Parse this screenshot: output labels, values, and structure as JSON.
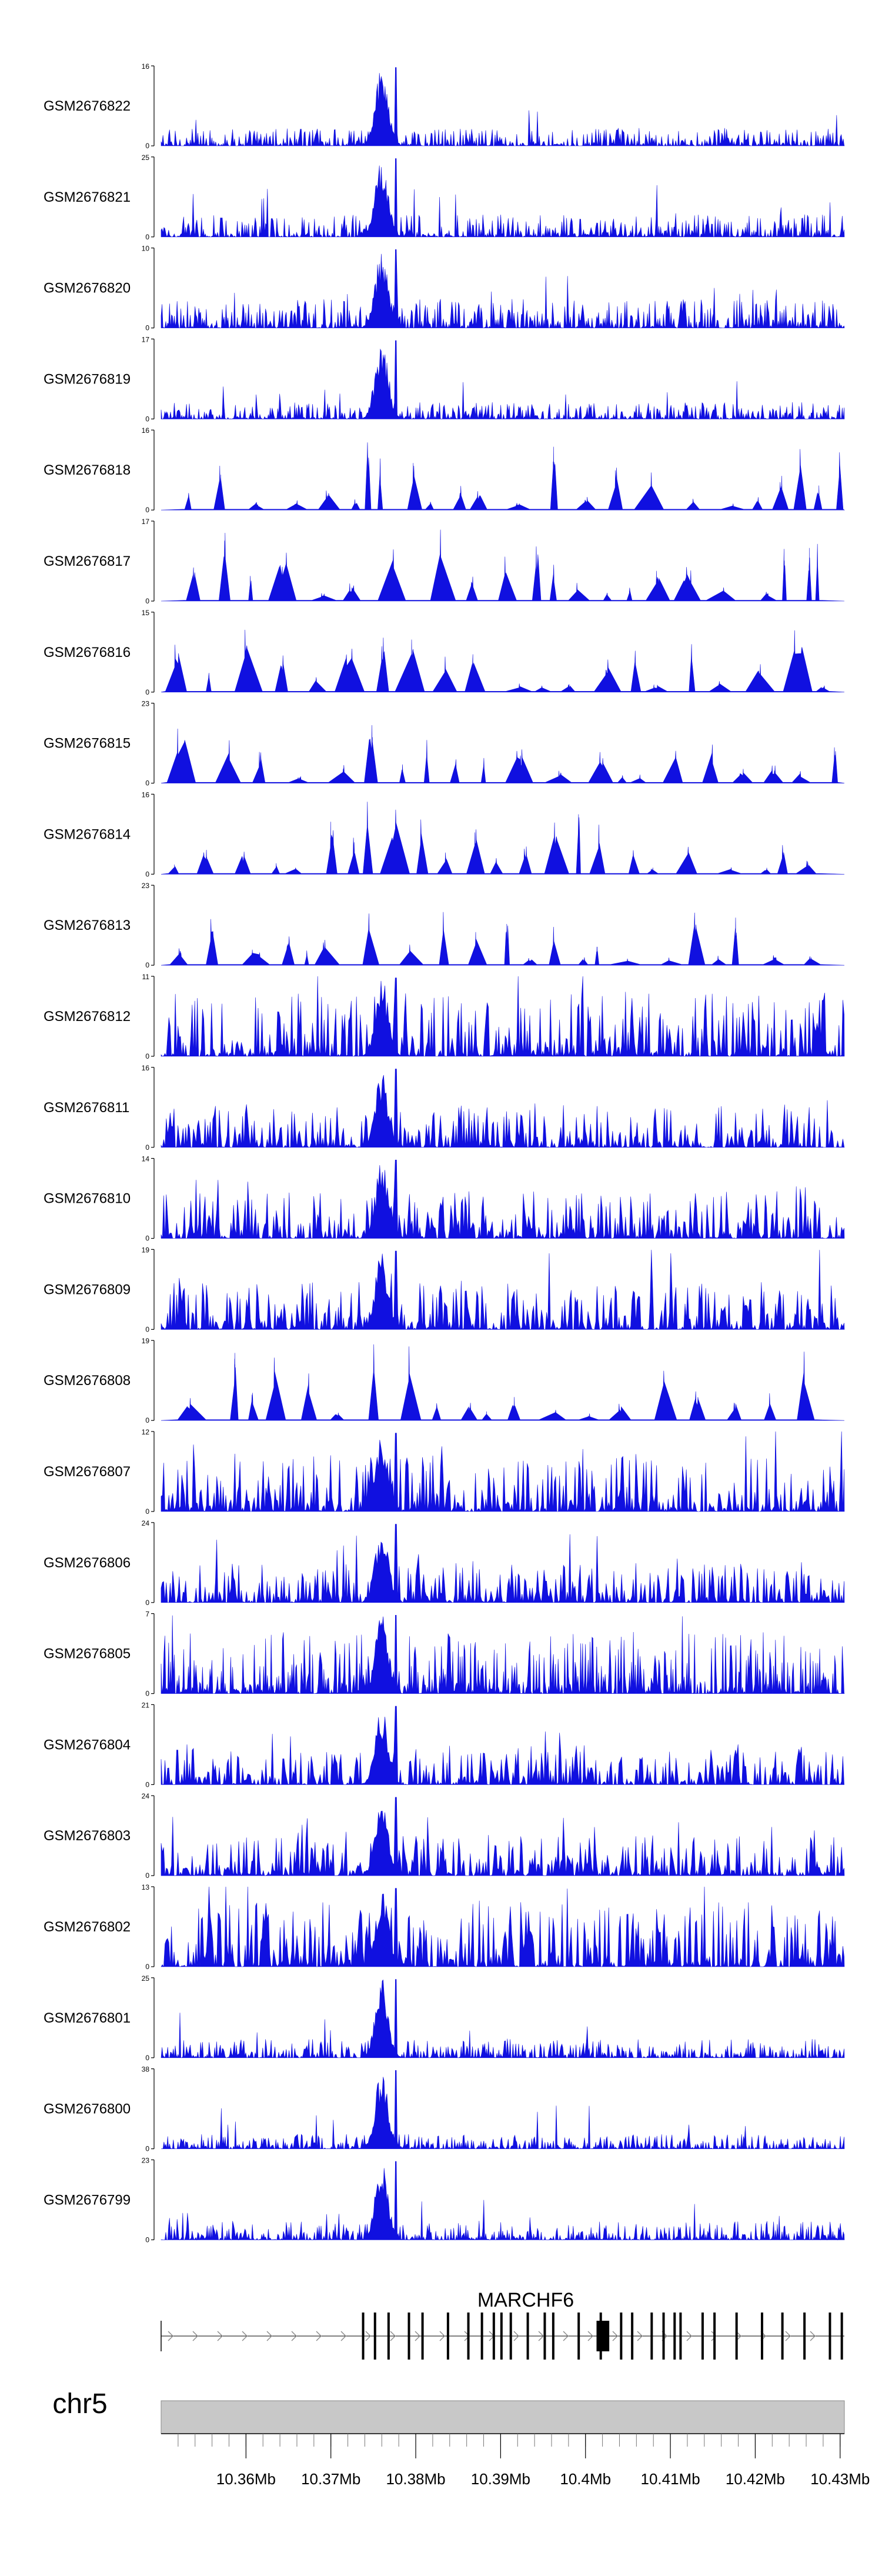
{
  "chart_data": {
    "type": "area",
    "title": "",
    "x_range": [
      10.35,
      10.4305
    ],
    "track_color": "#1010e0",
    "tracks": [
      {
        "name": "GSM2676822",
        "ymax": 16,
        "ymin": 0,
        "style": "dense",
        "noise": 0.16
      },
      {
        "name": "GSM2676821",
        "ymax": 25,
        "ymin": 0,
        "style": "dense",
        "noise": 0.2
      },
      {
        "name": "GSM2676820",
        "ymax": 10,
        "ymin": 0,
        "style": "dense",
        "noise": 0.26
      },
      {
        "name": "GSM2676819",
        "ymax": 17,
        "ymin": 0,
        "style": "dense",
        "noise": 0.15
      },
      {
        "name": "GSM2676818",
        "ymax": 16,
        "ymin": 0,
        "style": "sparse",
        "noise": 0.45
      },
      {
        "name": "GSM2676817",
        "ymax": 17,
        "ymin": 0,
        "style": "sparse",
        "noise": 0.55
      },
      {
        "name": "GSM2676816",
        "ymax": 15,
        "ymin": 0,
        "style": "sparse",
        "noise": 0.5
      },
      {
        "name": "GSM2676815",
        "ymax": 23,
        "ymin": 0,
        "style": "sparse",
        "noise": 0.4
      },
      {
        "name": "GSM2676814",
        "ymax": 16,
        "ymin": 0,
        "style": "sparse",
        "noise": 0.45
      },
      {
        "name": "GSM2676813",
        "ymax": 23,
        "ymin": 0,
        "style": "sparse",
        "noise": 0.4
      },
      {
        "name": "GSM2676812",
        "ymax": 11,
        "ymin": 0,
        "style": "medium",
        "noise": 0.45
      },
      {
        "name": "GSM2676811",
        "ymax": 16,
        "ymin": 0,
        "style": "medium",
        "noise": 0.3
      },
      {
        "name": "GSM2676810",
        "ymax": 14,
        "ymin": 0,
        "style": "medium",
        "noise": 0.33
      },
      {
        "name": "GSM2676809",
        "ymax": 19,
        "ymin": 0,
        "style": "medium",
        "noise": 0.33
      },
      {
        "name": "GSM2676808",
        "ymax": 19,
        "ymin": 0,
        "style": "sparse",
        "noise": 0.55
      },
      {
        "name": "GSM2676807",
        "ymax": 12,
        "ymin": 0,
        "style": "medium",
        "noise": 0.4
      },
      {
        "name": "GSM2676806",
        "ymax": 24,
        "ymin": 0,
        "style": "medium",
        "noise": 0.28
      },
      {
        "name": "GSM2676805",
        "ymax": 7,
        "ymin": 0,
        "style": "dense",
        "noise": 0.55
      },
      {
        "name": "GSM2676804",
        "ymax": 21,
        "ymin": 0,
        "style": "medium",
        "noise": 0.28
      },
      {
        "name": "GSM2676803",
        "ymax": 24,
        "ymin": 0,
        "style": "medium",
        "noise": 0.28
      },
      {
        "name": "GSM2676802",
        "ymax": 13,
        "ymin": 0,
        "style": "medium",
        "noise": 0.45
      },
      {
        "name": "GSM2676801",
        "ymax": 25,
        "ymin": 0,
        "style": "dense",
        "noise": 0.17
      },
      {
        "name": "GSM2676800",
        "ymax": 38,
        "ymin": 0,
        "style": "dense",
        "noise": 0.13
      },
      {
        "name": "GSM2676799",
        "ymax": 23,
        "ymin": 0,
        "style": "dense",
        "noise": 0.17
      }
    ],
    "gene": {
      "name": "MARCHF6",
      "start": 10.35,
      "end": 10.4305,
      "strand": "+",
      "exons": [
        10.3738,
        10.3752,
        10.3768,
        10.3792,
        10.3808,
        10.3838,
        10.3862,
        10.3878,
        10.3892,
        10.3901,
        10.3912,
        10.3932,
        10.3952,
        10.3962,
        10.3992,
        10.4018,
        10.4042,
        10.4055,
        10.4078,
        10.4092,
        10.4105,
        10.4112,
        10.4138,
        10.4152,
        10.4178,
        10.4208,
        10.4232,
        10.4258,
        10.4288,
        10.4302
      ],
      "thick_exon": [
        10.4013,
        10.4028
      ]
    },
    "chromosome": "chr5",
    "ideogram_color": "#c8c8c8",
    "axis_ticks": [
      10.36,
      10.37,
      10.38,
      10.39,
      10.4,
      10.41,
      10.42,
      10.43
    ],
    "axis_labels": [
      "10.36Mb",
      "10.37Mb",
      "10.38Mb",
      "10.39Mb",
      "10.4Mb",
      "10.41Mb",
      "10.42Mb",
      "10.43Mb"
    ],
    "minor_tick_step": 0.002,
    "peak_region": [
      10.3745,
      10.3775
    ]
  }
}
